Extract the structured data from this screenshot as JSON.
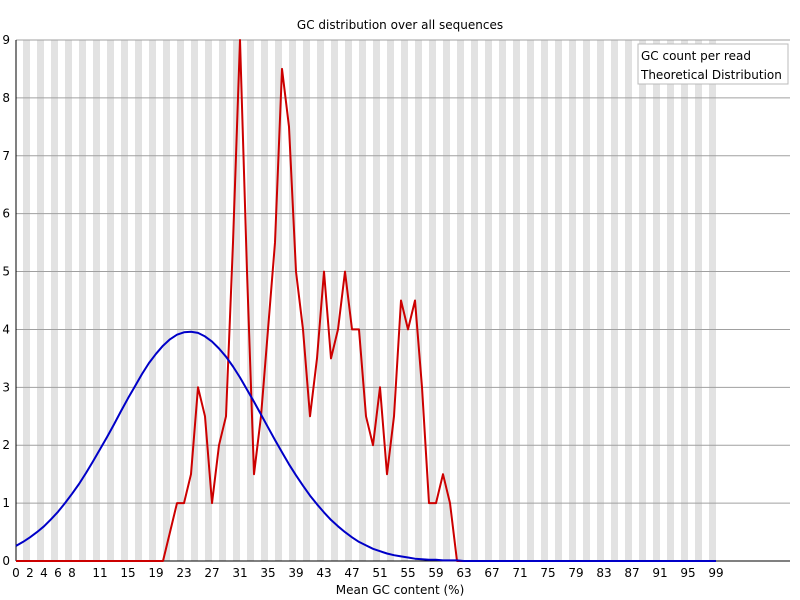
{
  "chart_data": {
    "type": "line",
    "title": "GC distribution over all sequences",
    "xlabel": "Mean GC content (%)",
    "ylabel": "",
    "xlim": [
      0,
      100
    ],
    "ylim": [
      0,
      9
    ],
    "grid": true,
    "legend_position": "top-right",
    "y_ticks": [
      "0",
      "1",
      "2",
      "3",
      "4",
      "5",
      "6",
      "7",
      "8",
      "9"
    ],
    "x_tick_labels": [
      "0",
      "2",
      "4",
      "6",
      "8",
      "11",
      "15",
      "19",
      "23",
      "27",
      "31",
      "35",
      "39",
      "43",
      "47",
      "51",
      "55",
      "59",
      "63",
      "67",
      "71",
      "75",
      "79",
      "83",
      "87",
      "91",
      "95",
      "99"
    ],
    "x_tick_values": [
      0,
      1,
      2,
      3,
      4,
      6,
      8,
      10,
      12,
      14,
      16,
      18,
      20,
      22,
      24,
      26,
      28,
      30,
      32,
      34,
      36,
      38,
      40,
      42,
      44,
      46,
      48,
      50
    ],
    "series": [
      {
        "name": "GC count per read",
        "color": "#cc0000",
        "values": [
          0,
          0,
          0,
          0,
          0,
          0,
          0,
          0,
          0,
          0,
          0,
          0,
          0,
          0,
          0,
          0,
          0,
          0,
          0,
          0,
          0,
          0,
          0.5,
          1,
          1,
          1.5,
          3,
          2.5,
          1,
          2,
          2.5,
          5.5,
          9,
          5,
          1.5,
          2.5,
          4,
          5.5,
          8.5,
          7.5,
          5,
          4,
          2.5,
          3.5,
          5,
          3.5,
          4,
          5,
          4,
          4,
          2.5,
          2,
          3,
          1.5,
          2.5,
          4.5,
          4,
          4.5,
          3,
          1,
          1,
          1.5,
          1,
          0,
          0,
          0,
          0,
          0,
          0,
          0,
          0,
          0,
          0,
          0,
          0,
          0,
          0,
          0,
          0,
          0,
          0,
          0,
          0,
          0,
          0,
          0,
          0,
          0,
          0,
          0,
          0,
          0,
          0,
          0,
          0,
          0,
          0,
          0,
          0,
          0,
          0
        ]
      },
      {
        "name": "Theoretical Distribution",
        "color": "#0000c8",
        "values": [
          0.26,
          0.33,
          0.41,
          0.5,
          0.6,
          0.72,
          0.85,
          1,
          1.16,
          1.33,
          1.52,
          1.72,
          1.93,
          2.14,
          2.36,
          2.59,
          2.81,
          3.02,
          3.23,
          3.42,
          3.58,
          3.72,
          3.83,
          3.91,
          3.95,
          3.96,
          3.94,
          3.88,
          3.79,
          3.67,
          3.53,
          3.36,
          3.17,
          2.96,
          2.75,
          2.53,
          2.31,
          2.09,
          1.88,
          1.67,
          1.48,
          1.3,
          1.13,
          0.98,
          0.84,
          0.71,
          0.6,
          0.5,
          0.41,
          0.33,
          0.27,
          0.21,
          0.17,
          0.13,
          0.1,
          0.08,
          0.06,
          0.04,
          0.03,
          0.02,
          0.02,
          0.01,
          0.01,
          0.01,
          0,
          0,
          0,
          0,
          0,
          0,
          0,
          0,
          0,
          0,
          0,
          0,
          0,
          0,
          0,
          0,
          0,
          0,
          0,
          0,
          0,
          0,
          0,
          0,
          0,
          0,
          0,
          0,
          0,
          0,
          0,
          0,
          0,
          0,
          0,
          0,
          0
        ]
      }
    ]
  }
}
